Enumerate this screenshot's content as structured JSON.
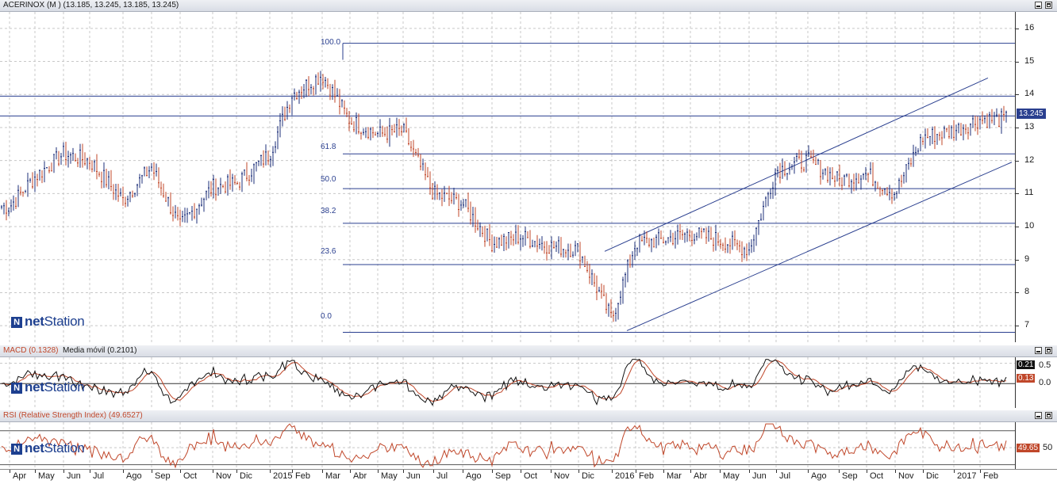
{
  "main": {
    "title": "ACERINOX (M ) (13.185, 13.245, 13.185, 13.245)",
    "y_labels": [
      "16",
      "15",
      "14",
      "13",
      "12",
      "11",
      "10",
      "9",
      "8",
      "7"
    ],
    "price_tag": "13.245",
    "fib_labels": [
      "100.0",
      "61.8",
      "50.0",
      "38.2",
      "23.6",
      "0.0"
    ],
    "logo": {
      "mark": "N",
      "net": "net",
      "station": "Station"
    }
  },
  "macd": {
    "title_left": "MACD (0.1328)",
    "title_right": "Media móvil (0.2101)",
    "y_labels": [
      "0.5",
      "0.0"
    ],
    "tag_signal": "0.21",
    "tag_macd": "0.13",
    "logo": {
      "mark": "N",
      "net": "net",
      "station": "Station"
    }
  },
  "rsi": {
    "title": "RSI (Relative Strength Index) (49.6527)",
    "y_labels": [
      "50"
    ],
    "tag": "49.65",
    "logo": {
      "mark": "N",
      "net": "net",
      "station": "Station"
    }
  },
  "x_labels": [
    "Apr",
    "May",
    "Jun",
    "Jul",
    "Ago",
    "Sep",
    "Oct",
    "Nov",
    "Dic",
    "2015",
    "Feb",
    "Mar",
    "Abr",
    "May",
    "Jun",
    "Jul",
    "Ago",
    "Sep",
    "Oct",
    "Nov",
    "Dic",
    "2016",
    "Feb",
    "Mar",
    "Abr",
    "May",
    "Jun",
    "Jul",
    "Ago",
    "Sep",
    "Oct",
    "Nov",
    "Dic",
    "2017",
    "Feb"
  ],
  "colors": {
    "up": "#1d2f7a",
    "down": "#c0472a",
    "fib": "#2a3f8f",
    "macd": "#111111",
    "signal": "#c0472a",
    "rsi": "#c0472a"
  },
  "chart_data": {
    "type": "candlestick",
    "symbol": "ACERINOX",
    "last": {
      "open": 13.185,
      "high": 13.245,
      "low": 13.185,
      "close": 13.245
    },
    "ylim": [
      6.5,
      16.5
    ],
    "x": [
      "Apr",
      "May",
      "Jun",
      "Jul",
      "Ago",
      "Sep",
      "Oct",
      "Nov",
      "Dic",
      "2015",
      "Feb",
      "Mar",
      "Abr",
      "May",
      "Jun",
      "Jul",
      "Ago",
      "Sep",
      "Oct",
      "Nov",
      "Dic",
      "2016",
      "Feb",
      "Mar",
      "Abr",
      "May",
      "Jun",
      "Jul",
      "Ago",
      "Sep",
      "Oct",
      "Nov",
      "Dic",
      "2017",
      "Feb"
    ],
    "close": [
      10.6,
      11.5,
      12.2,
      12.0,
      10.8,
      11.8,
      10.0,
      11.2,
      11.3,
      12.2,
      14.0,
      14.6,
      13.2,
      12.8,
      12.9,
      11.0,
      10.7,
      9.5,
      9.7,
      9.4,
      9.3,
      7.2,
      9.5,
      9.6,
      9.8,
      9.6,
      9.3,
      11.7,
      12.0,
      11.4,
      11.6,
      11.0,
      12.7,
      12.9,
      13.245
    ],
    "fib_levels": [
      {
        "label": "100.0",
        "price": 15.55
      },
      {
        "label": "61.8",
        "price": 12.2
      },
      {
        "label": "50.0",
        "price": 11.15
      },
      {
        "label": "38.2",
        "price": 10.1
      },
      {
        "label": "23.6",
        "price": 8.85
      },
      {
        "label": "0.0",
        "price": 6.8
      }
    ],
    "macd_panel": {
      "macd": 0.1328,
      "signal": 0.2101,
      "ylim": [
        -0.6,
        0.65
      ]
    },
    "rsi_panel": {
      "rsi": 49.6527,
      "ylim": [
        25,
        80
      ]
    }
  }
}
